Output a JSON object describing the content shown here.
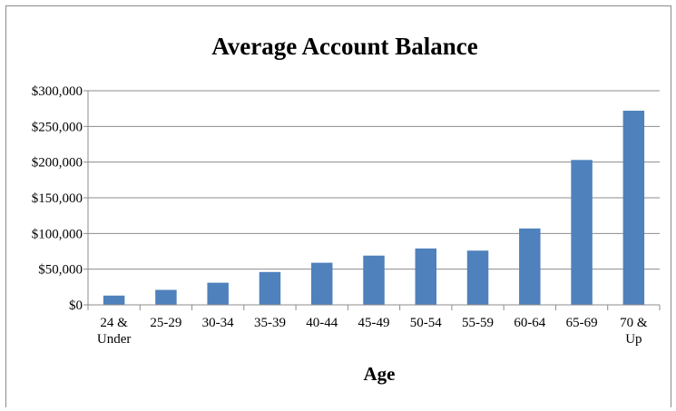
{
  "chart_data": {
    "type": "bar",
    "title": "Average Account Balance",
    "xlabel": "Age",
    "ylabel": "",
    "ylim": [
      0,
      300000
    ],
    "y_ticks": [
      0,
      50000,
      100000,
      150000,
      200000,
      250000,
      300000
    ],
    "y_tick_labels": [
      "$0",
      "$50,000",
      "$100,000",
      "$150,000",
      "$200,000",
      "$250,000",
      "$300,000"
    ],
    "categories": [
      [
        "24 &",
        "Under"
      ],
      [
        "25-29"
      ],
      [
        "30-34"
      ],
      [
        "35-39"
      ],
      [
        "40-44"
      ],
      [
        "45-49"
      ],
      [
        "50-54"
      ],
      [
        "55-59"
      ],
      [
        "60-64"
      ],
      [
        "65-69"
      ],
      [
        "70 &",
        "Up"
      ]
    ],
    "values": [
      13000,
      21000,
      31000,
      46000,
      59000,
      69000,
      79000,
      76000,
      107000,
      203000,
      272000
    ],
    "grid": true,
    "legend": "none",
    "bar_color": "#4f81bd",
    "gridline_color": "#8c8c8c"
  }
}
